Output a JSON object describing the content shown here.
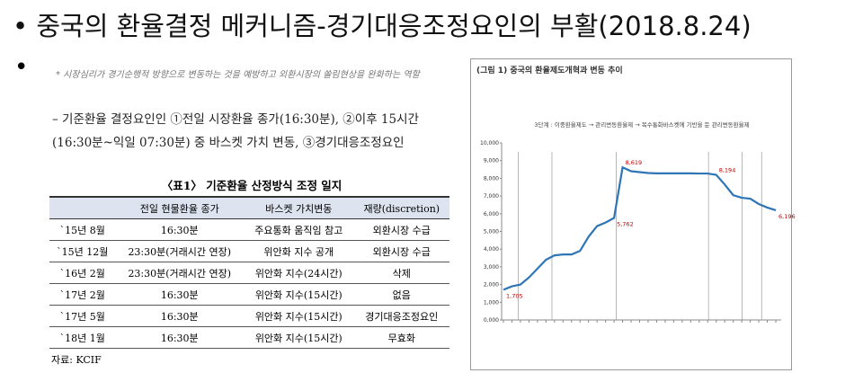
{
  "header": {
    "title": "중국의 환율결정 메커니즘-경기대응조정요인의 부활(2018.8.24)"
  },
  "body": {
    "note": "* 시장심리가 경기순행적 방향으로 변동하는 것을 예방하고 외환시장의 쏠림현상을 완화하는 역할",
    "point": "– 기준환율 결정요인인 ①전일 시장환율 종가(16:30분), ②이후 15시간(16:30분~익일 07:30분) 중 바스켓 가치 변동, ③경기대응조정요인"
  },
  "table": {
    "caption": "〈표1〉 기준환율 산정방식 조정 일지",
    "columns": [
      "전일 현물환율 종가",
      "바스켓 가치변동",
      "재량(discretion)"
    ],
    "rows": [
      [
        "`15년 8월",
        "16:30분",
        "주요통화 움직임 참고",
        "외환시장 수급"
      ],
      [
        "`15년 12월",
        "23:30분(거래시간 연장)",
        "위안화 지수 공개",
        "외환시장 수급"
      ],
      [
        "`16년 2월",
        "23:30분(거래시간 연장)",
        "위안화 지수(24시간)",
        "삭제"
      ],
      [
        "`17년 2월",
        "16:30분",
        "위안화 지수(15시간)",
        "없음"
      ],
      [
        "`17년 5월",
        "16:30분",
        "위안화 지수(15시간)",
        "경기대응조정요인"
      ],
      [
        "`18년 1월",
        "16:30분",
        "위안화 지수(15시간)",
        "무효화"
      ]
    ],
    "source": "자료: KCIF"
  },
  "chart_data": {
    "type": "line",
    "title": "(그림 1) 중국의 환율제도개혁과 변동 추이",
    "subtitle": "3단계 : 이중환율제도 → 관리변동환율제 → 복수통화바스켓에 기반을 둔 관리변동환율제",
    "color": "#2e75b6",
    "ylim": [
      0,
      10000
    ],
    "yticks": [
      {
        "value": 0,
        "label": "0,000"
      },
      {
        "value": 1000,
        "label": "1,000"
      },
      {
        "value": 2000,
        "label": "2,000"
      },
      {
        "value": 3000,
        "label": "3,000"
      },
      {
        "value": 4000,
        "label": "4,000"
      },
      {
        "value": 5000,
        "label": "5,000"
      },
      {
        "value": 6000,
        "label": "6,000"
      },
      {
        "value": 7000,
        "label": "7,000"
      },
      {
        "value": 8000,
        "label": "8,000"
      },
      {
        "value": 9000,
        "label": "9,000"
      },
      {
        "value": 10000,
        "label": "10,000"
      }
    ],
    "values": [
      1705,
      1900,
      2000,
      2400,
      2900,
      3400,
      3650,
      3700,
      3700,
      3900,
      4700,
      5300,
      5500,
      5762,
      8619,
      8400,
      8350,
      8300,
      8280,
      8280,
      8280,
      8280,
      8280,
      8270,
      8270,
      8194,
      7650,
      7050,
      6900,
      6850,
      6550,
      6350,
      6196
    ],
    "value_labels": [
      "1,705",
      null,
      null,
      null,
      null,
      null,
      null,
      null,
      null,
      null,
      null,
      null,
      null,
      "5,762",
      "8,619",
      null,
      null,
      null,
      null,
      null,
      null,
      null,
      null,
      null,
      null,
      "8,194",
      null,
      null,
      null,
      null,
      null,
      null,
      "6,196"
    ]
  }
}
